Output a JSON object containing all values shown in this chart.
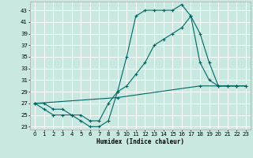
{
  "xlabel": "Humidex (Indice chaleur)",
  "bg_color": "#c8e8e0",
  "grid_color": "#ffffff",
  "line_color": "#006666",
  "xlim": [
    -0.5,
    23.5
  ],
  "ylim": [
    22.5,
    44.5
  ],
  "yticks": [
    23,
    25,
    27,
    29,
    31,
    33,
    35,
    37,
    39,
    41,
    43
  ],
  "xticks": [
    0,
    1,
    2,
    3,
    4,
    5,
    6,
    7,
    8,
    9,
    10,
    11,
    12,
    13,
    14,
    15,
    16,
    17,
    18,
    19,
    20,
    21,
    22,
    23
  ],
  "line1_x": [
    0,
    1,
    2,
    3,
    4,
    5,
    6,
    7,
    8,
    9,
    10,
    11,
    12,
    13,
    14,
    15,
    16,
    17,
    18,
    19,
    20,
    21,
    22
  ],
  "line1_y": [
    27,
    26,
    25,
    25,
    25,
    24,
    23,
    23,
    24,
    29,
    35,
    42,
    43,
    43,
    43,
    43,
    44,
    42,
    34,
    31,
    30,
    30,
    30
  ],
  "line2_x": [
    0,
    1,
    2,
    3,
    4,
    5,
    6,
    7,
    8,
    9,
    10,
    11,
    12,
    13,
    14,
    15,
    16,
    17,
    18,
    19,
    20,
    21,
    22,
    23
  ],
  "line2_y": [
    27,
    27,
    26,
    26,
    25,
    25,
    24,
    24,
    27,
    29,
    30,
    32,
    34,
    37,
    38,
    39,
    40,
    42,
    39,
    34,
    30,
    30,
    30,
    30
  ],
  "line3_x": [
    0,
    9,
    18,
    22,
    23
  ],
  "line3_y": [
    27,
    28,
    30,
    30,
    30
  ]
}
